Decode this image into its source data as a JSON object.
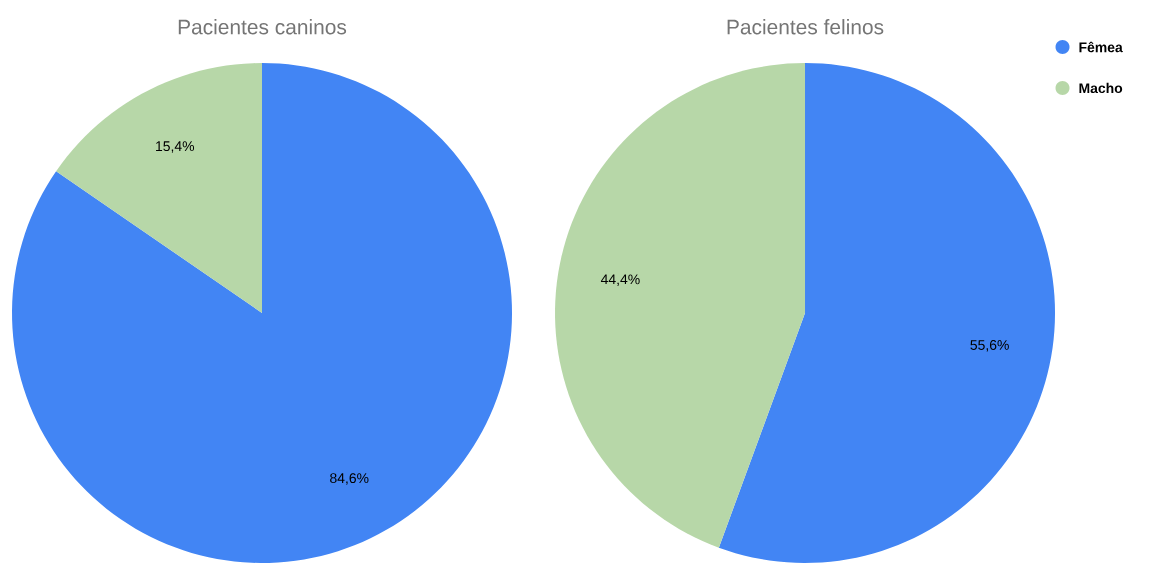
{
  "chart_data": [
    {
      "type": "pie",
      "title": "Pacientes caninos",
      "categories": [
        null,
        null
      ],
      "values": [
        84.6,
        15.4
      ],
      "colors": [
        "#4285f4",
        "#b7d7a8"
      ],
      "value_labels": [
        "84,6%",
        "15,4%"
      ]
    },
    {
      "type": "pie",
      "title": "Pacientes felinos",
      "categories": [
        "Fêmea",
        "Macho"
      ],
      "values": [
        55.6,
        44.4
      ],
      "colors": [
        "#4285f4",
        "#b7d7a8"
      ],
      "value_labels": [
        "55,6%",
        "44,4%"
      ],
      "legend": "top right"
    }
  ]
}
